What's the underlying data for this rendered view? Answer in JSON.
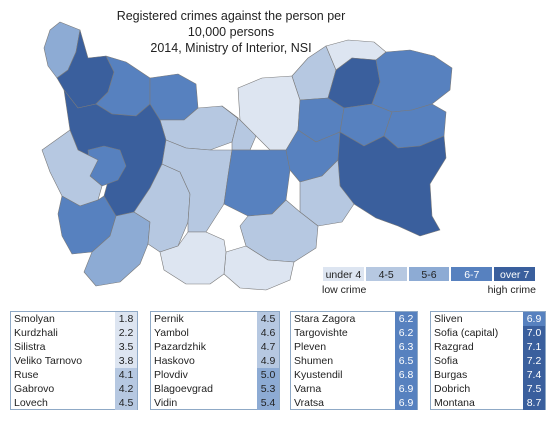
{
  "title": {
    "line1": "Registered crimes against the person per 10,000 persons",
    "line2": "2014, Ministry of Interior, NSI"
  },
  "classes": [
    {
      "label": "under 4",
      "color": "#dde5f1"
    },
    {
      "label": "4-5",
      "color": "#b6c8e1"
    },
    {
      "label": "5-6",
      "color": "#8dabd4"
    },
    {
      "label": "6-7",
      "color": "#5781bf"
    },
    {
      "label": "over 7",
      "color": "#3a5f9d"
    }
  ],
  "legend": {
    "low": "low crime",
    "high": "high crime"
  },
  "table": [
    [
      {
        "name": "Smolyan",
        "value": "1.8"
      },
      {
        "name": "Kurdzhali",
        "value": "2.2"
      },
      {
        "name": "Silistra",
        "value": "3.5"
      },
      {
        "name": "Veliko Tarnovo",
        "value": "3.8"
      },
      {
        "name": "Ruse",
        "value": "4.1"
      },
      {
        "name": "Gabrovo",
        "value": "4.2"
      },
      {
        "name": "Lovech",
        "value": "4.5"
      }
    ],
    [
      {
        "name": "Pernik",
        "value": "4.5"
      },
      {
        "name": "Yambol",
        "value": "4.6"
      },
      {
        "name": "Pazardzhik",
        "value": "4.7"
      },
      {
        "name": "Haskovo",
        "value": "4.9"
      },
      {
        "name": "Plovdiv",
        "value": "5.0"
      },
      {
        "name": "Blagoevgrad",
        "value": "5.3"
      },
      {
        "name": "Vidin",
        "value": "5.4"
      }
    ],
    [
      {
        "name": "Stara Zagora",
        "value": "6.2"
      },
      {
        "name": "Targovishte",
        "value": "6.2"
      },
      {
        "name": "Pleven",
        "value": "6.3"
      },
      {
        "name": "Shumen",
        "value": "6.5"
      },
      {
        "name": "Kyustendil",
        "value": "6.8"
      },
      {
        "name": "Varna",
        "value": "6.9"
      },
      {
        "name": "Vratsa",
        "value": "6.9"
      }
    ],
    [
      {
        "name": "Sliven",
        "value": "6.9"
      },
      {
        "name": "Sofia (capital)",
        "value": "7.0"
      },
      {
        "name": "Razgrad",
        "value": "7.1"
      },
      {
        "name": "Sofia",
        "value": "7.2"
      },
      {
        "name": "Burgas",
        "value": "7.4"
      },
      {
        "name": "Dobrich",
        "value": "7.5"
      },
      {
        "name": "Montana",
        "value": "8.7"
      }
    ]
  ]
}
